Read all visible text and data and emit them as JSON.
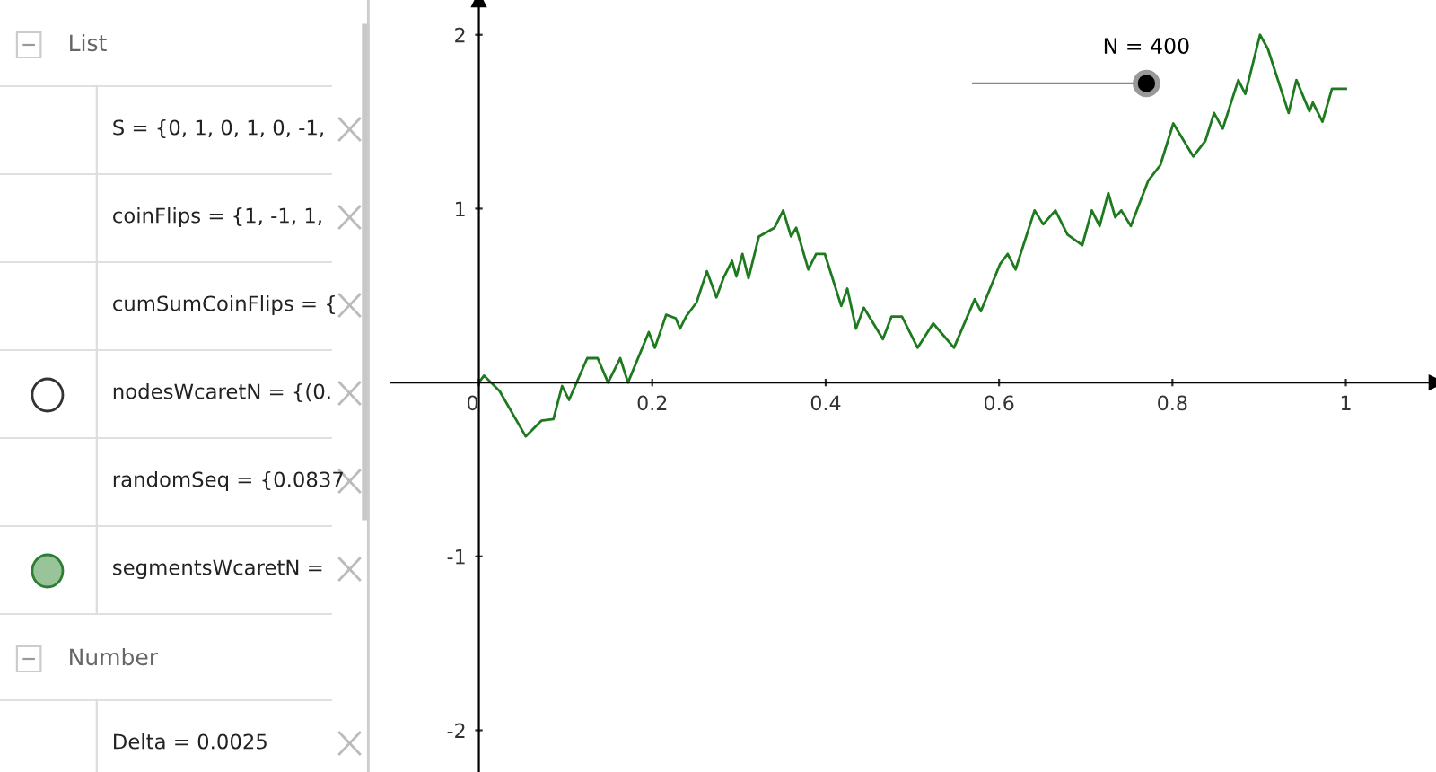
{
  "chart_data": [
    {
      "type": "other",
      "annotations": [
        "List",
        "S = {0, 1, 0, 1, 0, -1,",
        "coinFlips = {1, -1, 1,",
        "cumSumCoinFlips = {",
        "nodesWcaretN = {(0.",
        "randomSeq = {0.0837",
        "segmentsWcaretN = ",
        "Number",
        "Delta = 0.0025"
      ]
    },
    {
      "type": "line",
      "grid": false,
      "legend": false,
      "marker": "none",
      "line_style": "solid",
      "xlim": [
        -0.101,
        1.104
      ],
      "ylim": [
        -2.24,
        2.2
      ],
      "xticks": [
        {
          "value": 0,
          "label": "0"
        },
        0.2,
        0.4,
        0.6,
        0.8,
        1
      ],
      "yticks": [
        -2,
        -1,
        1,
        2
      ],
      "annotations": [
        {
          "text": "N = 400",
          "x": 0.77,
          "y": 1.72
        }
      ],
      "series": [
        {
          "color": "#1e7a1e",
          "x": [
            0,
            0.006,
            0.024,
            0.054,
            0.072,
            0.086,
            0.096,
            0.104,
            0.125,
            0.137,
            0.149,
            0.163,
            0.172,
            0.196,
            0.203,
            0.216,
            0.227,
            0.232,
            0.239,
            0.251,
            0.263,
            0.274,
            0.282,
            0.292,
            0.297,
            0.304,
            0.311,
            0.323,
            0.341,
            0.351,
            0.36,
            0.366,
            0.38,
            0.389,
            0.399,
            0.418,
            0.425,
            0.435,
            0.444,
            0.466,
            0.476,
            0.488,
            0.506,
            0.524,
            0.548,
            0.572,
            0.579,
            0.601,
            0.61,
            0.619,
            0.641,
            0.651,
            0.665,
            0.679,
            0.696,
            0.707,
            0.716,
            0.726,
            0.734,
            0.741,
            0.752,
            0.772,
            0.786,
            0.801,
            0.824,
            0.838,
            0.848,
            0.858,
            0.876,
            0.884,
            0.901,
            0.91,
            0.934,
            0.943,
            0.958,
            0.962,
            0.973,
            0.984,
            1.0
          ],
          "values": [
            0,
            0.04,
            -0.05,
            -0.31,
            -0.22,
            -0.21,
            -0.02,
            -0.1,
            0.14,
            0.14,
            0,
            0.14,
            0,
            0.29,
            0.2,
            0.39,
            0.37,
            0.31,
            0.38,
            0.46,
            0.64,
            0.49,
            0.6,
            0.7,
            0.61,
            0.74,
            0.6,
            0.84,
            0.89,
            0.99,
            0.84,
            0.89,
            0.65,
            0.74,
            0.74,
            0.44,
            0.54,
            0.31,
            0.43,
            0.25,
            0.38,
            0.38,
            0.2,
            0.34,
            0.2,
            0.48,
            0.41,
            0.68,
            0.74,
            0.65,
            0.99,
            0.91,
            0.99,
            0.85,
            0.79,
            0.99,
            0.9,
            1.09,
            0.95,
            0.99,
            0.9,
            1.16,
            1.25,
            1.49,
            1.3,
            1.39,
            1.55,
            1.46,
            1.74,
            1.66,
            2.0,
            1.92,
            1.55,
            1.74,
            1.56,
            1.61,
            1.5,
            1.69,
            1.69
          ]
        }
      ]
    }
  ]
}
